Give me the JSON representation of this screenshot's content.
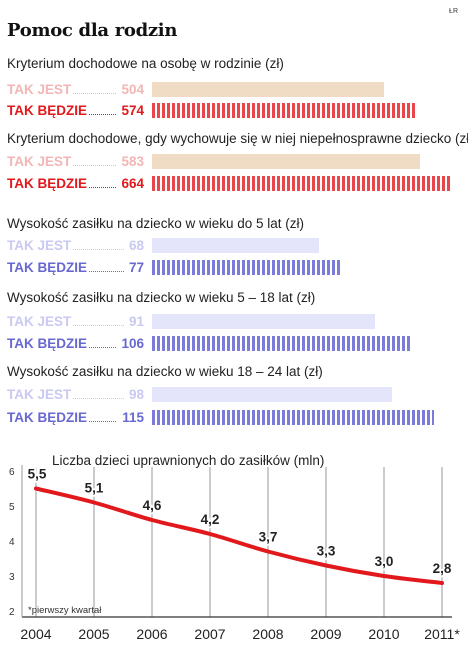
{
  "header": {
    "title": "Pomoc dla rodzin",
    "credit": "ŁR"
  },
  "sections": [
    {
      "title": "Kryterium dochodowe na osobę w rodzinie (zł)",
      "scheme": "red",
      "rows": [
        {
          "label": "TAK JEST",
          "value": 504,
          "kind": "now"
        },
        {
          "label": "TAK BĘDZIE",
          "value": 574,
          "kind": "future"
        }
      ]
    },
    {
      "title": "Kryterium dochodowe, gdy wychowuje się w niej niepełnosprawne dziecko (zł)",
      "scheme": "red",
      "rows": [
        {
          "label": "TAK JEST",
          "value": 583,
          "kind": "now"
        },
        {
          "label": "TAK BĘDZIE",
          "value": 664,
          "kind": "future"
        }
      ]
    },
    {
      "title": "Wysokość zasiłku na dziecko w wieku do 5 lat (zł)",
      "scheme": "blue",
      "rows": [
        {
          "label": "TAK JEST",
          "value": 68,
          "kind": "now"
        },
        {
          "label": "TAK BĘDZIE",
          "value": 77,
          "kind": "future"
        }
      ]
    },
    {
      "title": "Wysokość zasiłku na dziecko w wieku 5 – 18 lat (zł)",
      "scheme": "blue",
      "rows": [
        {
          "label": "TAK JEST",
          "value": 91,
          "kind": "now"
        },
        {
          "label": "TAK BĘDZIE",
          "value": 106,
          "kind": "future"
        }
      ]
    },
    {
      "title": "Wysokość zasiłku na dziecko w wieku 18 – 24 lat (zł)",
      "scheme": "blue",
      "rows": [
        {
          "label": "TAK JEST",
          "value": 98,
          "kind": "now"
        },
        {
          "label": "TAK BĘDZIE",
          "value": 115,
          "kind": "future"
        }
      ]
    }
  ],
  "chart_data": {
    "type": "line",
    "title": "Liczba dzieci uprawnionych do zasiłków (mln)",
    "x": [
      "2004",
      "2005",
      "2006",
      "2007",
      "2008",
      "2009",
      "2010",
      "2011*"
    ],
    "series": [
      {
        "values": [
          5.5,
          5.1,
          4.6,
          4.2,
          3.7,
          3.3,
          3.0,
          2.8
        ],
        "labels": [
          "5,5",
          "5,1",
          "4,6",
          "4,2",
          "3,7",
          "3,3",
          "3,0",
          "2,8"
        ]
      }
    ],
    "yticks": [
      "2",
      "3",
      "4",
      "5",
      "6"
    ],
    "ylim": [
      2,
      6
    ],
    "grid": "vertical",
    "footnote": "*pierwszy kwartał",
    "colors": {
      "line": "#e1181c",
      "grid": "#999999",
      "axis": "#333333"
    }
  }
}
